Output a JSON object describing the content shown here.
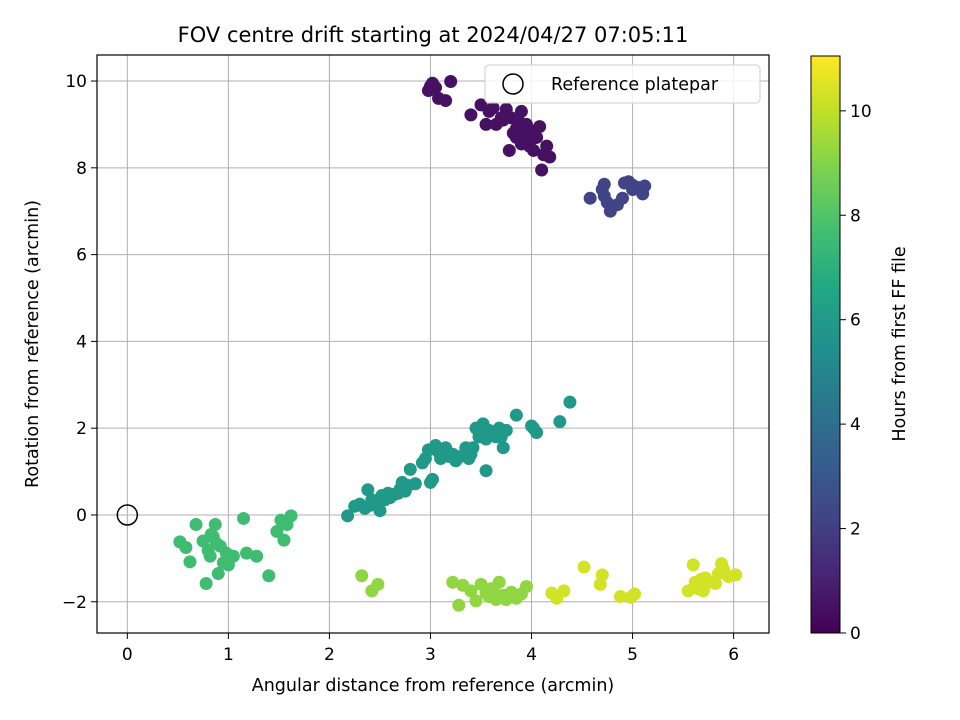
{
  "chart_data": {
    "type": "scatter",
    "title": "FOV centre drift starting at 2024/04/27 07:05:11",
    "xlabel": "Angular distance from reference (arcmin)",
    "ylabel": "Rotation from reference (arcmin)",
    "colorbar_label": "Hours from first FF file",
    "colormap": "viridis",
    "xlim": [
      -0.3,
      6.35
    ],
    "ylim": [
      -2.72,
      10.6
    ],
    "clim": [
      0,
      11.05
    ],
    "x_ticks": [
      0,
      1,
      2,
      3,
      4,
      5,
      6
    ],
    "y_ticks": [
      -2,
      0,
      2,
      4,
      6,
      8,
      10
    ],
    "colorbar_ticks": [
      0,
      2,
      4,
      6,
      8,
      10
    ],
    "grid": true,
    "legend": {
      "placement": "top-right",
      "entries": [
        "Reference platepar"
      ]
    },
    "reference_point": {
      "x": 0,
      "y": 0
    },
    "clusters": [
      {
        "hours": 0.5,
        "points": [
          [
            2.98,
            9.78
          ],
          [
            3.0,
            9.88
          ],
          [
            3.02,
            9.95
          ],
          [
            3.05,
            9.85
          ],
          [
            3.08,
            9.6
          ],
          [
            3.15,
            9.55
          ],
          [
            3.2,
            9.99
          ],
          [
            3.4,
            9.22
          ],
          [
            3.5,
            9.45
          ],
          [
            3.55,
            9.0
          ],
          [
            3.58,
            9.3
          ],
          [
            3.62,
            9.38
          ],
          [
            3.65,
            9.0
          ],
          [
            3.72,
            9.1
          ],
          [
            3.75,
            9.35
          ],
          [
            3.78,
            8.4
          ],
          [
            3.8,
            9.15
          ],
          [
            3.82,
            8.8
          ],
          [
            3.85,
            8.7
          ],
          [
            3.88,
            9.05
          ],
          [
            3.9,
            9.3
          ],
          [
            3.92,
            8.6
          ],
          [
            3.95,
            9.0
          ],
          [
            3.98,
            8.5
          ],
          [
            4.0,
            8.85
          ],
          [
            4.02,
            8.4
          ],
          [
            4.05,
            8.7
          ],
          [
            4.08,
            8.95
          ],
          [
            4.12,
            8.3
          ],
          [
            4.15,
            8.5
          ],
          [
            4.18,
            8.25
          ],
          [
            4.1,
            7.95
          ],
          [
            3.9,
            8.55
          ],
          [
            3.7,
            9.15
          ],
          [
            3.85,
            8.9
          ],
          [
            3.95,
            8.75
          ]
        ]
      },
      {
        "hours": 2.2,
        "points": [
          [
            4.58,
            7.3
          ],
          [
            4.7,
            7.5
          ],
          [
            4.72,
            7.62
          ],
          [
            4.75,
            7.2
          ],
          [
            4.78,
            7.0
          ],
          [
            4.72,
            7.35
          ],
          [
            4.85,
            7.15
          ],
          [
            4.9,
            7.3
          ],
          [
            4.92,
            7.65
          ],
          [
            4.96,
            7.68
          ],
          [
            5.0,
            7.6
          ],
          [
            5.05,
            7.55
          ],
          [
            5.1,
            7.4
          ],
          [
            5.12,
            7.58
          ],
          [
            5.0,
            7.5
          ]
        ]
      },
      {
        "hours": 5.9,
        "points": [
          [
            2.18,
            -0.02
          ],
          [
            2.25,
            0.2
          ],
          [
            2.3,
            0.25
          ],
          [
            2.35,
            0.15
          ],
          [
            2.38,
            0.58
          ],
          [
            2.42,
            0.35
          ],
          [
            2.45,
            0.3
          ],
          [
            2.48,
            0.2
          ],
          [
            2.5,
            0.1
          ],
          [
            2.52,
            0.45
          ],
          [
            2.55,
            0.35
          ],
          [
            2.58,
            0.5
          ],
          [
            2.6,
            0.4
          ],
          [
            2.65,
            0.48
          ],
          [
            2.7,
            0.6
          ],
          [
            2.72,
            0.75
          ],
          [
            2.75,
            0.55
          ],
          [
            2.78,
            0.68
          ],
          [
            2.8,
            1.05
          ],
          [
            2.85,
            0.72
          ],
          [
            2.92,
            1.2
          ],
          [
            2.98,
            1.5
          ],
          [
            3.0,
            0.75
          ],
          [
            3.02,
            0.82
          ],
          [
            3.05,
            1.6
          ],
          [
            3.08,
            1.45
          ],
          [
            3.1,
            1.3
          ],
          [
            3.12,
            1.5
          ],
          [
            3.18,
            1.35
          ],
          [
            3.22,
            1.4
          ],
          [
            3.25,
            1.25
          ],
          [
            3.3,
            1.35
          ],
          [
            3.35,
            1.55
          ],
          [
            3.38,
            1.3
          ],
          [
            3.42,
            1.55
          ],
          [
            3.45,
            2.0
          ],
          [
            3.48,
            1.8
          ],
          [
            3.5,
            1.85
          ],
          [
            3.52,
            2.1
          ],
          [
            3.55,
            1.75
          ],
          [
            3.58,
            1.95
          ],
          [
            3.6,
            1.85
          ],
          [
            3.62,
            1.85
          ],
          [
            3.65,
            1.8
          ],
          [
            3.68,
            2.0
          ],
          [
            3.7,
            1.8
          ],
          [
            3.72,
            1.55
          ],
          [
            3.75,
            1.95
          ],
          [
            3.85,
            2.3
          ],
          [
            4.0,
            2.05
          ],
          [
            4.02,
            2.0
          ],
          [
            4.05,
            1.9
          ],
          [
            4.28,
            2.15
          ],
          [
            4.38,
            2.6
          ],
          [
            3.55,
            1.02
          ],
          [
            3.4,
            1.4
          ],
          [
            3.15,
            1.55
          ],
          [
            2.95,
            1.3
          ],
          [
            2.68,
            0.5
          ],
          [
            2.4,
            0.22
          ]
        ]
      },
      {
        "hours": 7.6,
        "points": [
          [
            0.52,
            -0.62
          ],
          [
            0.58,
            -0.75
          ],
          [
            0.62,
            -1.08
          ],
          [
            0.68,
            -0.22
          ],
          [
            0.75,
            -0.6
          ],
          [
            0.78,
            -1.58
          ],
          [
            0.8,
            -0.82
          ],
          [
            0.82,
            -0.95
          ],
          [
            0.85,
            -0.5
          ],
          [
            0.87,
            -0.22
          ],
          [
            0.88,
            -0.65
          ],
          [
            0.9,
            -1.35
          ],
          [
            0.92,
            -0.72
          ],
          [
            0.98,
            -0.88
          ],
          [
            1.0,
            -1.15
          ],
          [
            1.05,
            -0.95
          ],
          [
            1.15,
            -0.08
          ],
          [
            1.18,
            -0.88
          ],
          [
            1.28,
            -0.95
          ],
          [
            1.4,
            -1.4
          ],
          [
            1.48,
            -0.38
          ],
          [
            1.52,
            -0.12
          ],
          [
            1.55,
            -0.58
          ],
          [
            1.58,
            -0.22
          ],
          [
            1.62,
            -0.02
          ],
          [
            0.95,
            -1.1
          ],
          [
            0.83,
            -0.45
          ]
        ]
      },
      {
        "hours": 9.2,
        "points": [
          [
            2.32,
            -1.4
          ],
          [
            2.42,
            -1.75
          ],
          [
            2.48,
            -1.6
          ],
          [
            3.22,
            -1.55
          ],
          [
            3.28,
            -2.08
          ],
          [
            3.32,
            -1.62
          ],
          [
            3.4,
            -1.75
          ],
          [
            3.45,
            -1.98
          ],
          [
            3.5,
            -1.6
          ],
          [
            3.55,
            -1.8
          ],
          [
            3.58,
            -1.88
          ],
          [
            3.62,
            -1.72
          ],
          [
            3.65,
            -1.95
          ],
          [
            3.68,
            -1.55
          ],
          [
            3.72,
            -1.85
          ],
          [
            3.75,
            -1.95
          ],
          [
            3.8,
            -1.78
          ],
          [
            3.85,
            -1.92
          ],
          [
            3.9,
            -1.82
          ],
          [
            3.95,
            -1.65
          ],
          [
            3.6,
            -1.7
          ]
        ]
      },
      {
        "hours": 10.3,
        "points": [
          [
            4.2,
            -1.8
          ],
          [
            4.25,
            -1.92
          ],
          [
            4.32,
            -1.75
          ],
          [
            4.52,
            -1.2
          ],
          [
            4.68,
            -1.6
          ],
          [
            4.7,
            -1.38
          ],
          [
            4.88,
            -1.88
          ],
          [
            4.98,
            -1.9
          ],
          [
            5.02,
            -1.82
          ],
          [
            5.55,
            -1.75
          ],
          [
            5.6,
            -1.15
          ],
          [
            5.62,
            -1.55
          ],
          [
            5.65,
            -1.7
          ],
          [
            5.68,
            -1.48
          ],
          [
            5.7,
            -1.75
          ],
          [
            5.72,
            -1.45
          ],
          [
            5.78,
            -1.55
          ],
          [
            5.82,
            -1.58
          ],
          [
            5.85,
            -1.35
          ],
          [
            5.88,
            -1.12
          ],
          [
            5.9,
            -1.25
          ],
          [
            5.95,
            -1.42
          ],
          [
            6.02,
            -1.38
          ],
          [
            5.66,
            -1.6
          ]
        ]
      }
    ]
  }
}
